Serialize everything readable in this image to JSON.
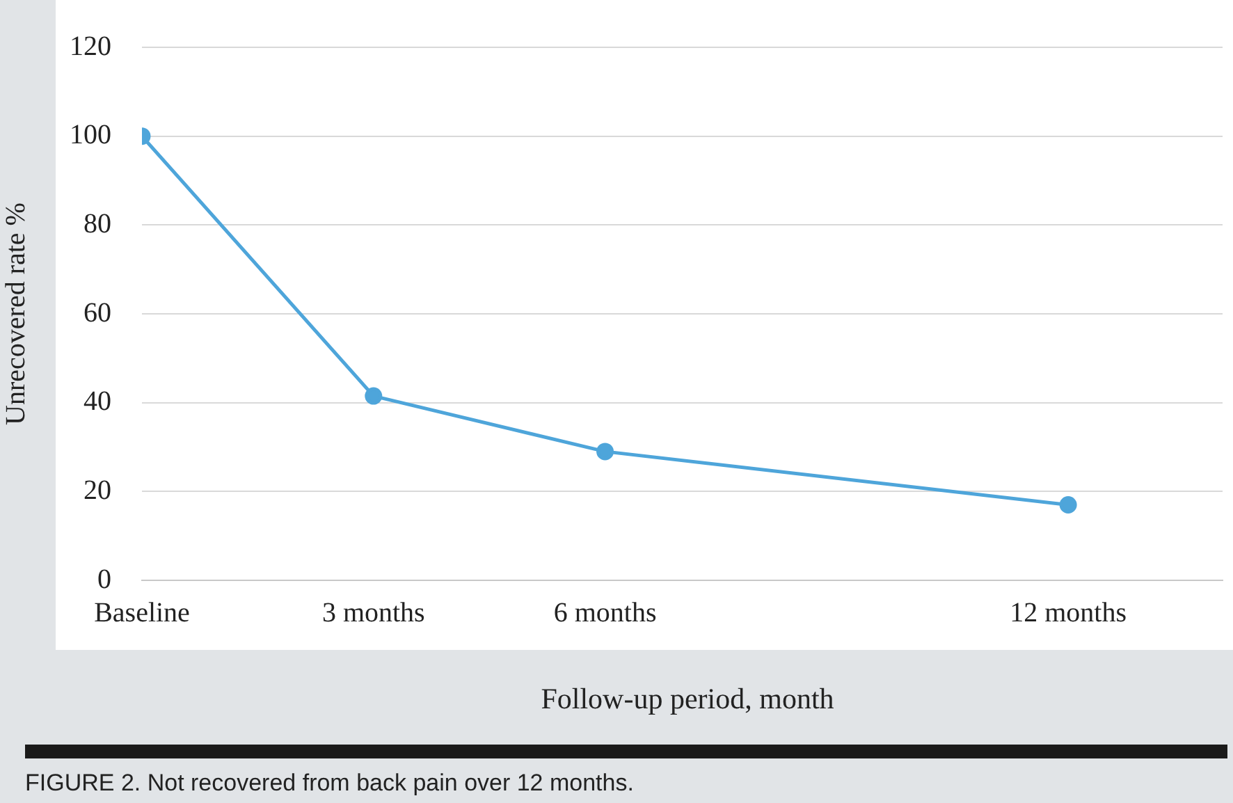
{
  "chart_data": {
    "type": "line",
    "xlabel": "Follow-up period, month",
    "ylabel": "Unrecovered rate %",
    "x": [
      0,
      3,
      6,
      12
    ],
    "series": [
      {
        "color": "#4ea5da",
        "values": [
          100,
          41.5,
          29,
          17
        ]
      }
    ],
    "xlim": [
      0,
      14
    ],
    "xticks": [
      {
        "value": 0,
        "label": "Baseline"
      },
      {
        "value": 3,
        "label": "3 months"
      },
      {
        "value": 6,
        "label": "6 months"
      },
      {
        "value": 12,
        "label": "12 months"
      }
    ],
    "ylim": [
      0,
      120
    ],
    "yticks": [
      0,
      20,
      40,
      60,
      80,
      100,
      120
    ],
    "grid": "y",
    "legend": false,
    "marker": "circle",
    "line_style": "solid",
    "annotations": [
      "FIGURE 2. Not recovered from back pain over 12 months."
    ]
  }
}
